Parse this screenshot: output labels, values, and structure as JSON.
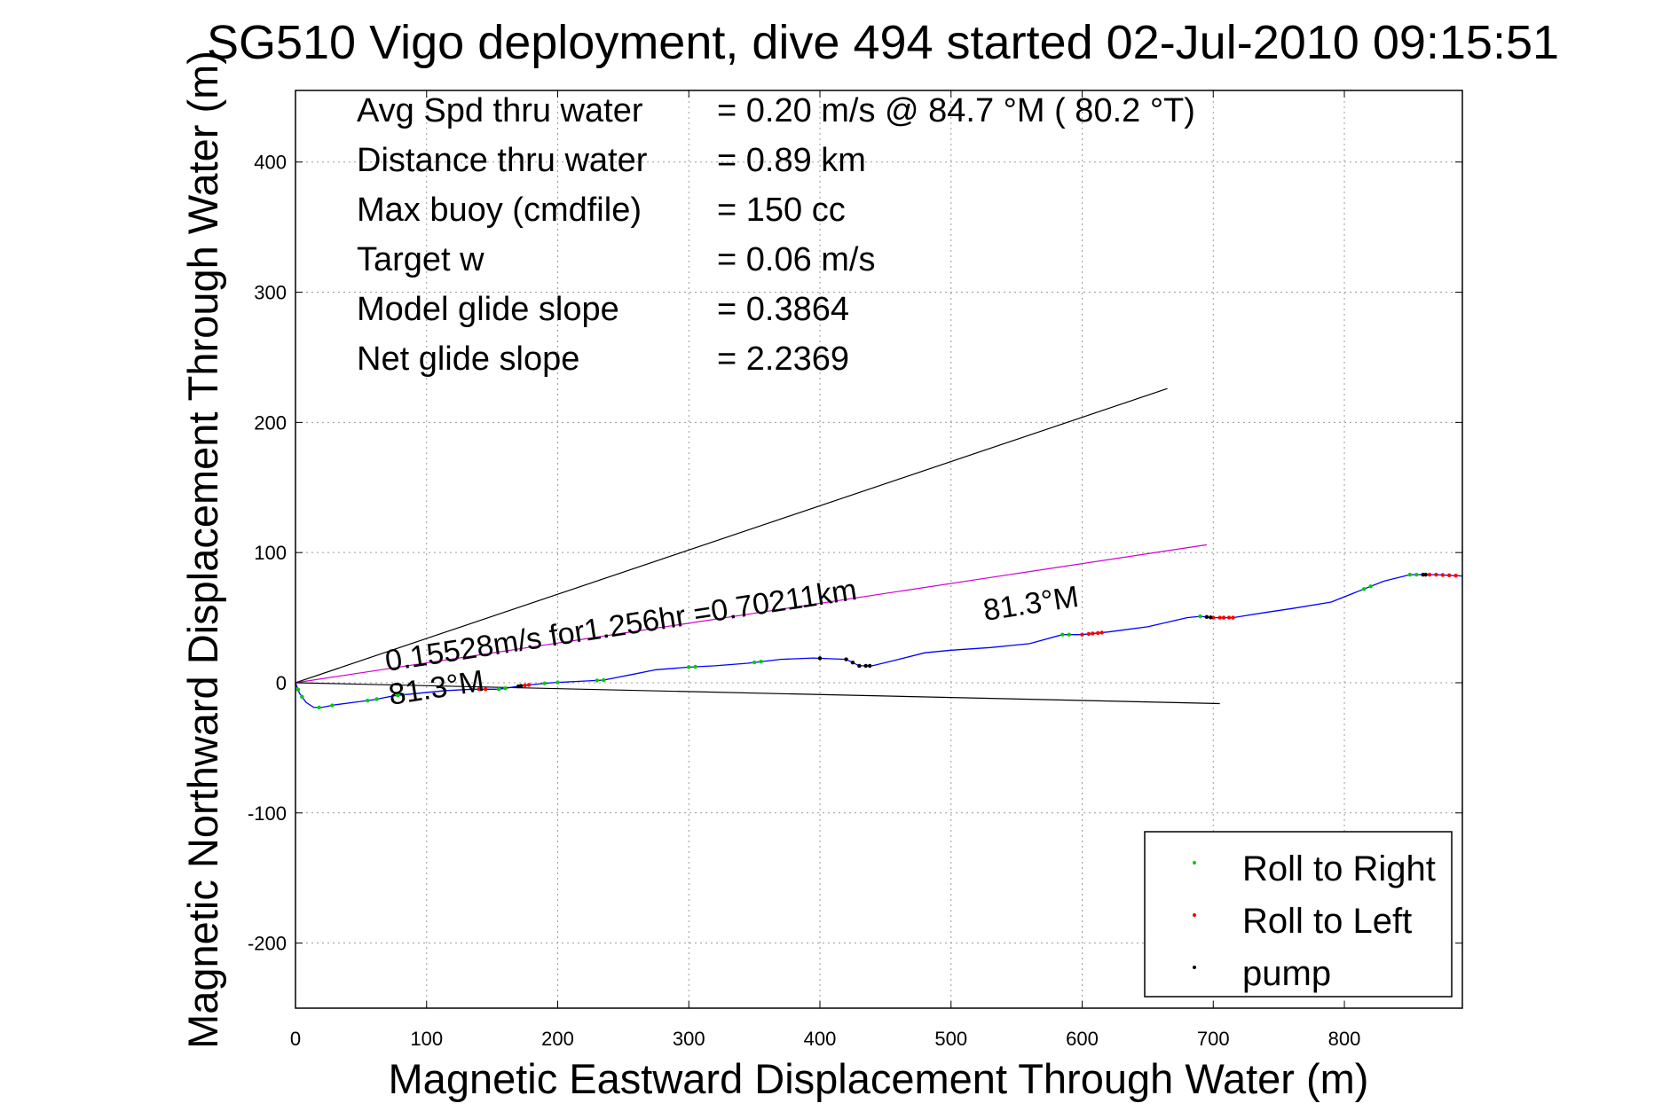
{
  "chart_data": {
    "type": "line",
    "title": "SG510 Vigo deployment, dive 494 started 02-Jul-2010 09:15:51",
    "xlabel": "Magnetic Eastward Displacement Through Water (m)",
    "ylabel": "Magnetic Northward Displacement Through Water (m)",
    "xlim": [
      0,
      890
    ],
    "ylim": [
      -250,
      455
    ],
    "xticks": [
      0,
      100,
      200,
      300,
      400,
      500,
      600,
      700,
      800
    ],
    "yticks": [
      -200,
      -100,
      0,
      100,
      200,
      300,
      400
    ],
    "grid": true,
    "legend_position": "bottom-right",
    "info_lines": [
      {
        "label": "Avg Spd thru water",
        "value": "=  0.20 m/s @  84.7 °M ( 80.2 °T)"
      },
      {
        "label": "Distance thru water",
        "value": "=  0.89 km"
      },
      {
        "label": "Max buoy (cmdfile)",
        "value": "= 150 cc"
      },
      {
        "label": "Target w",
        "value": "= 0.06 m/s"
      },
      {
        "label": "Model glide slope",
        "value": "= 0.3864"
      },
      {
        "label": "Net glide slope",
        "value": "= 2.2369"
      }
    ],
    "reference_lines": [
      {
        "x": [
          0,
          665
        ],
        "y": [
          0,
          226
        ],
        "color": "#000000"
      },
      {
        "x": [
          0,
          705
        ],
        "y": [
          0,
          -16
        ],
        "color": "#000000"
      },
      {
        "x": [
          0,
          695
        ],
        "y": [
          0,
          106
        ],
        "color": "#cc00cc"
      }
    ],
    "annotations": {
      "current": "0.15528m/s for1.256hr =0.70211km",
      "heading_low": "81.3°M",
      "heading_high": "81.3°M"
    },
    "track": {
      "name": "track",
      "color": "#0000ff",
      "x": [
        0,
        3,
        8,
        14,
        20,
        30,
        45,
        60,
        75,
        95,
        115,
        135,
        155,
        175,
        195,
        215,
        235,
        255,
        275,
        300,
        320,
        345,
        370,
        395,
        420,
        430,
        440,
        460,
        480,
        500,
        530,
        560,
        585,
        600,
        620,
        650,
        680,
        690,
        700,
        715,
        740,
        760,
        790,
        810,
        830,
        850,
        870,
        890
      ],
      "y": [
        0,
        -8,
        -15,
        -19,
        -19,
        -17,
        -15,
        -13,
        -10,
        -8,
        -6,
        -5,
        -5,
        -2,
        0,
        1,
        2,
        6,
        10,
        12,
        13,
        15,
        18,
        19,
        18,
        13,
        13,
        18,
        23,
        25,
        27,
        30,
        37,
        37,
        39,
        43,
        50,
        51,
        50,
        50,
        54,
        57,
        62,
        70,
        78,
        83,
        83,
        82
      ]
    },
    "legend": [
      {
        "label": "Roll to Right",
        "color": "#00cc00"
      },
      {
        "label": "Roll to Left",
        "color": "#ff0000"
      },
      {
        "label": "pump",
        "color": "#000000"
      }
    ],
    "markers": {
      "roll_right_x": [
        2,
        5,
        18,
        28,
        55,
        62,
        78,
        82,
        155,
        160,
        190,
        200,
        230,
        235,
        300,
        305,
        350,
        355,
        585,
        590,
        690,
        815,
        820,
        850,
        855
      ],
      "roll_left_x": [
        140,
        145,
        175,
        178,
        600,
        605,
        608,
        612,
        615,
        700,
        705,
        708,
        712,
        715,
        865,
        870,
        875,
        880,
        885
      ],
      "pump_x": [
        170,
        172,
        400,
        420,
        425,
        430,
        435,
        438,
        695,
        698,
        860,
        862
      ]
    }
  }
}
